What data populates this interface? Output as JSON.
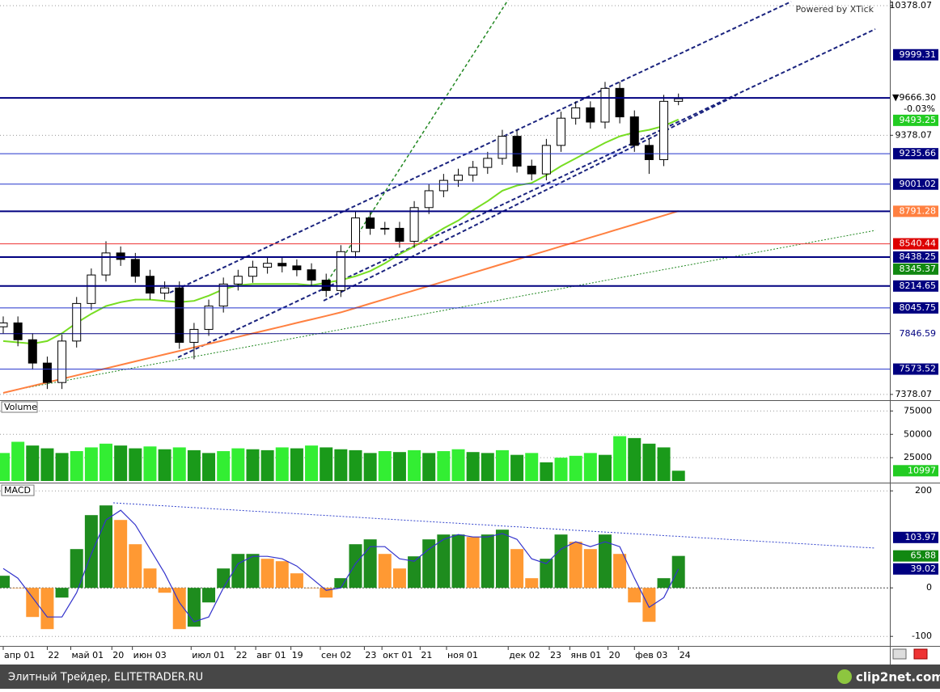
{
  "chart_data": [
    {
      "type": "candlestick",
      "title": "Powered by XTick",
      "change": "-0.03%",
      "x": [
        0,
        5,
        10,
        15,
        20,
        25,
        30,
        35,
        40,
        45,
        50,
        55,
        60,
        65,
        70,
        75,
        80,
        85,
        90,
        95,
        100,
        105,
        110,
        115,
        120,
        125,
        130,
        135,
        140,
        145,
        150,
        155,
        160,
        165,
        170,
        175,
        180,
        185,
        190,
        195,
        200,
        205,
        210,
        215,
        220,
        225,
        230
      ],
      "open": [
        7900,
        7930,
        7800,
        7620,
        7470,
        7790,
        8080,
        8300,
        8470,
        8420,
        8290,
        8160,
        8200,
        7780,
        7880,
        8060,
        8230,
        8290,
        8360,
        8390,
        8370,
        8340,
        8260,
        8180,
        8480,
        8740,
        8660,
        8660,
        8560,
        8820,
        8950,
        9030,
        9070,
        9130,
        9200,
        9370,
        9140,
        9080,
        9300,
        9510,
        9590,
        9480,
        9740,
        9520,
        9300,
        9190,
        9640
      ],
      "high": [
        7980,
        7980,
        7850,
        7670,
        7840,
        8130,
        8350,
        8560,
        8520,
        8470,
        8340,
        8250,
        8250,
        7930,
        8110,
        8280,
        8340,
        8410,
        8440,
        8440,
        8420,
        8390,
        8310,
        8530,
        8790,
        8790,
        8710,
        8710,
        8870,
        9000,
        9080,
        9120,
        9180,
        9250,
        9420,
        9420,
        9190,
        9350,
        9560,
        9640,
        9640,
        9790,
        9790,
        9570,
        9350,
        9690,
        9700
      ],
      "low": [
        7850,
        7750,
        7570,
        7420,
        7420,
        7740,
        8030,
        8250,
        8370,
        8240,
        8110,
        8110,
        7730,
        7650,
        7830,
        8010,
        8180,
        8240,
        8310,
        8320,
        8290,
        8210,
        8130,
        8130,
        8430,
        8610,
        8610,
        8510,
        8510,
        8770,
        8900,
        8980,
        9020,
        9080,
        9150,
        9090,
        9030,
        9030,
        9250,
        9460,
        9430,
        9430,
        9470,
        9250,
        9080,
        9140,
        9610
      ],
      "close": [
        7930,
        7800,
        7620,
        7470,
        7790,
        8080,
        8300,
        8470,
        8420,
        8290,
        8160,
        8200,
        7780,
        7880,
        8060,
        8230,
        8290,
        8360,
        8390,
        8370,
        8340,
        8260,
        8180,
        8480,
        8740,
        8660,
        8660,
        8560,
        8820,
        8950,
        9030,
        9070,
        9130,
        9200,
        9370,
        9140,
        9080,
        9300,
        9510,
        9590,
        9480,
        9740,
        9520,
        9300,
        9190,
        9640,
        9660
      ],
      "up_color": "#ffffff",
      "down_color": "#000000",
      "lines": [
        {
          "color": "#77dd22",
          "values": [
            7790,
            7780,
            7770,
            7790,
            7850,
            7930,
            8000,
            8060,
            8090,
            8110,
            8110,
            8100,
            8090,
            8100,
            8140,
            8190,
            8220,
            8230,
            8230,
            8230,
            8230,
            8220,
            8240,
            8260,
            8290,
            8330,
            8390,
            8460,
            8520,
            8590,
            8660,
            8720,
            8800,
            8870,
            8950,
            8990,
            9010,
            9070,
            9140,
            9200,
            9260,
            9320,
            9370,
            9400,
            9420,
            9450,
            9500
          ]
        },
        {
          "color": "#ff8040",
          "values": [
            7390,
            7417,
            7444,
            7471,
            7498,
            7525,
            7552,
            7579,
            7606,
            7633,
            7660,
            7687,
            7714,
            7741,
            7768,
            7795,
            7822,
            7849,
            7876,
            7903,
            7930,
            7957,
            7984,
            8011,
            8045,
            8079,
            8113,
            8147,
            8181,
            8215,
            8249,
            8283,
            8317,
            8351,
            8385,
            8419,
            8453,
            8487,
            8521,
            8555,
            8589,
            8623,
            8657,
            8691,
            8725,
            8759,
            8793
          ]
        }
      ],
      "xlim": [
        -1.1,
        302
      ],
      "ylim": [
        7340,
        10422
      ],
      "yticks": [
        10378.07,
        9378.07,
        7378.07
      ],
      "grid": true,
      "levels": [
        {
          "value": 9999.31,
          "box": "#000080",
          "ink": "#ffffff"
        },
        {
          "value": 9666.3,
          "label": "▼9666.30",
          "box": "#ffffff",
          "ink": "#000000",
          "line": "#000080",
          "width": 2
        },
        {
          "value": 9493.25,
          "box": "#22cc22",
          "ink": "#ffffff"
        },
        {
          "value": 9235.66,
          "box": "#000080",
          "ink": "#ffffff",
          "line": "#2233cc",
          "width": 1
        },
        {
          "value": 9001.02,
          "box": "#000080",
          "ink": "#ffffff",
          "line": "#2233cc",
          "width": 1
        },
        {
          "value": 8791.28,
          "box": "#ff8040",
          "ink": "#ffffff",
          "line": "#000080",
          "width": 2
        },
        {
          "value": 8540.44,
          "box": "#dd0000",
          "ink": "#ffffff",
          "line": "#ee3333",
          "width": 1
        },
        {
          "value": 8438.25,
          "box": "#000080",
          "ink": "#ffffff",
          "line": "#000080",
          "width": 2
        },
        {
          "value": 8345.37,
          "box": "#118811",
          "ink": "#ffffff"
        },
        {
          "value": 8214.65,
          "box": "#000080",
          "ink": "#ffffff",
          "line": "#000080",
          "width": 2
        },
        {
          "value": 8045.75,
          "box": "#000080",
          "ink": "#ffffff",
          "line": "#2233cc",
          "width": 1
        },
        {
          "value": 7846.59,
          "box": "#ffffff",
          "ink": "#000080",
          "line": "#000080",
          "width": 1
        },
        {
          "value": 7573.52,
          "box": "#000080",
          "ink": "#ffffff",
          "line": "#2233cc",
          "width": 1
        }
      ]
    },
    {
      "type": "volume",
      "title": "Volume",
      "x": [
        0,
        5,
        10,
        15,
        20,
        25,
        30,
        35,
        40,
        45,
        50,
        55,
        60,
        65,
        70,
        75,
        80,
        85,
        90,
        95,
        100,
        105,
        110,
        115,
        120,
        125,
        130,
        135,
        140,
        145,
        150,
        155,
        160,
        165,
        170,
        175,
        180,
        185,
        190,
        195,
        200,
        205,
        210,
        215,
        220,
        225,
        230
      ],
      "values": [
        30000,
        42000,
        38000,
        35000,
        30000,
        32000,
        36000,
        40000,
        38000,
        35000,
        37000,
        34000,
        36000,
        33000,
        30000,
        32000,
        35000,
        34000,
        33000,
        36000,
        35000,
        38000,
        36000,
        34000,
        33000,
        30000,
        32000,
        31000,
        33000,
        30000,
        32000,
        34000,
        31000,
        30000,
        33000,
        28000,
        30000,
        20000,
        25000,
        27000,
        30000,
        28000,
        48000,
        46000,
        40000,
        36000,
        10997
      ],
      "up_color": "#33ee33",
      "down_color": "#1a9a1a",
      "xlim": [
        -1.1,
        302
      ],
      "ylim": [
        0,
        84000
      ],
      "yticks": [
        75000,
        50000,
        25000
      ],
      "levels": [
        {
          "value": 10997,
          "box": "#22cc22",
          "ink": "#ffffff"
        }
      ]
    },
    {
      "type": "macd",
      "title": "MACD",
      "x": [
        0,
        5,
        10,
        15,
        20,
        25,
        30,
        35,
        40,
        45,
        50,
        55,
        60,
        65,
        70,
        75,
        80,
        85,
        90,
        95,
        100,
        105,
        110,
        115,
        120,
        125,
        130,
        135,
        140,
        145,
        150,
        155,
        160,
        165,
        170,
        175,
        180,
        185,
        190,
        195,
        200,
        205,
        210,
        215,
        220,
        225,
        230
      ],
      "values": [
        25,
        0,
        -60,
        -85,
        -20,
        80,
        150,
        170,
        140,
        90,
        40,
        -10,
        -85,
        -80,
        -30,
        40,
        70,
        70,
        60,
        55,
        30,
        0,
        -20,
        20,
        90,
        100,
        70,
        40,
        65,
        100,
        110,
        110,
        105,
        110,
        120,
        80,
        20,
        60,
        110,
        95,
        80,
        110,
        70,
        -30,
        -70,
        20,
        65.88
      ],
      "signal": [
        40,
        20,
        -20,
        -60,
        -60,
        -10,
        70,
        140,
        160,
        130,
        80,
        30,
        -30,
        -70,
        -60,
        0,
        50,
        65,
        65,
        60,
        45,
        20,
        -5,
        0,
        50,
        85,
        85,
        60,
        55,
        80,
        100,
        110,
        105,
        105,
        112,
        100,
        60,
        50,
        80,
        95,
        85,
        95,
        85,
        20,
        -40,
        -20,
        39.02
      ],
      "up_color": "#1e8c1e",
      "down_color": "#ff9933",
      "signal_color": "#3333cc",
      "xlim": [
        -1.1,
        302
      ],
      "ylim": [
        -118,
        212
      ],
      "yticks": [
        200,
        0,
        -100
      ],
      "xticks": [
        {
          "value": 0,
          "label": "апр 01"
        },
        {
          "value": 15,
          "label": "22"
        },
        {
          "value": 23,
          "label": "май 01"
        },
        {
          "value": 37,
          "label": "20"
        },
        {
          "value": 44,
          "label": "июн 03"
        },
        {
          "value": 64,
          "label": "июл 01"
        },
        {
          "value": 79,
          "label": "22"
        },
        {
          "value": 86,
          "label": "авг 01"
        },
        {
          "value": 98,
          "label": "19"
        },
        {
          "value": 108,
          "label": "сен 02"
        },
        {
          "value": 123,
          "label": "23"
        },
        {
          "value": 129,
          "label": "окт 01"
        },
        {
          "value": 142,
          "label": "21"
        },
        {
          "value": 151,
          "label": "ноя 01"
        },
        {
          "value": 172,
          "label": "дек 02"
        },
        {
          "value": 186,
          "label": "23"
        },
        {
          "value": 193,
          "label": "янв 01"
        },
        {
          "value": 206,
          "label": "20"
        },
        {
          "value": 215,
          "label": "фев 03"
        },
        {
          "value": 230,
          "label": "24"
        }
      ],
      "levels": [
        {
          "value": 103.97,
          "box": "#000080",
          "ink": "#ffffff"
        },
        {
          "value": 65.88,
          "box": "#118811",
          "ink": "#ffffff"
        },
        {
          "value": 39.02,
          "box": "#000080",
          "ink": "#ffffff"
        }
      ]
    }
  ],
  "footer": {
    "text": "Элитный Трейдер, ELITETRADER.RU",
    "logo": "clip2net.com"
  }
}
